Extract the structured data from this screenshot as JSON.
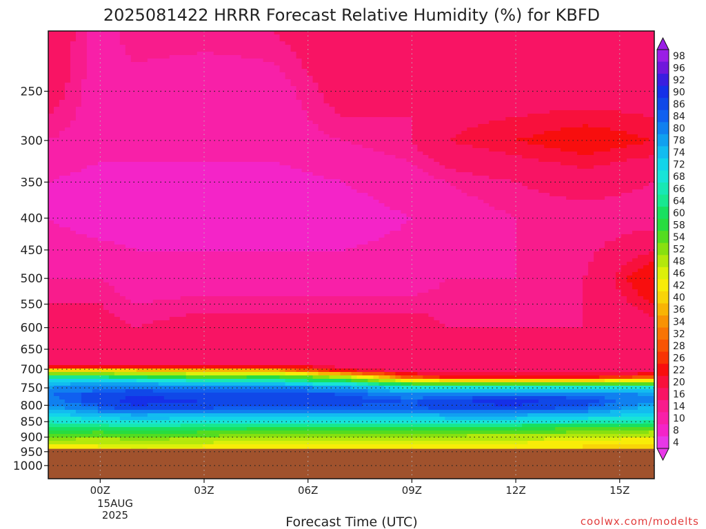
{
  "chart_data": {
    "type": "heatmap",
    "title": "2025081422 HRRR Forecast Relative Humidity (%) for KBFD",
    "xlabel": "Forecast Time (UTC)",
    "ylabel": "",
    "y_scale": "log-pressure",
    "y_reversed": true,
    "xlim": [
      -1.5,
      16.0
    ],
    "ylim": [
      1050,
      200
    ],
    "grid": true,
    "x_ticks": [
      {
        "value": 0,
        "label": "00Z"
      },
      {
        "value": 3,
        "label": "03Z"
      },
      {
        "value": 6,
        "label": "06Z"
      },
      {
        "value": 9,
        "label": "09Z"
      },
      {
        "value": 12,
        "label": "12Z"
      },
      {
        "value": 15,
        "label": "15Z"
      }
    ],
    "x_date_label": [
      "15AUG",
      "2025"
    ],
    "y_ticks": [
      250,
      300,
      350,
      400,
      450,
      500,
      550,
      600,
      650,
      700,
      750,
      800,
      850,
      900,
      950,
      1000
    ],
    "surface_pressure": 940,
    "x": [
      -1.5,
      0,
      1,
      3,
      5,
      7,
      9,
      10,
      12,
      14,
      16
    ],
    "y": [
      200,
      250,
      300,
      350,
      400,
      500,
      600,
      650,
      690,
      705,
      720,
      735,
      750,
      770,
      790,
      810,
      830,
      850,
      870,
      890,
      910,
      930,
      945
    ],
    "z": [
      [
        20,
        12,
        16,
        16,
        16,
        20,
        16,
        18,
        18,
        18,
        18
      ],
      [
        18,
        12,
        12,
        10,
        12,
        18,
        16,
        18,
        18,
        18,
        18
      ],
      [
        14,
        12,
        12,
        12,
        12,
        14,
        16,
        20,
        22,
        24,
        22
      ],
      [
        10,
        8,
        8,
        8,
        8,
        10,
        12,
        14,
        16,
        18,
        16
      ],
      [
        10,
        8,
        8,
        8,
        8,
        8,
        10,
        12,
        14,
        14,
        14
      ],
      [
        14,
        14,
        12,
        12,
        12,
        12,
        12,
        14,
        14,
        16,
        26
      ],
      [
        18,
        18,
        16,
        18,
        18,
        18,
        18,
        16,
        16,
        16,
        18
      ],
      [
        18,
        18,
        18,
        18,
        18,
        18,
        16,
        16,
        16,
        16,
        16
      ],
      [
        20,
        20,
        20,
        20,
        20,
        18,
        16,
        16,
        16,
        16,
        16
      ],
      [
        44,
        44,
        44,
        40,
        40,
        24,
        18,
        18,
        18,
        18,
        18
      ],
      [
        64,
        64,
        60,
        56,
        58,
        50,
        28,
        24,
        24,
        24,
        28
      ],
      [
        76,
        78,
        78,
        72,
        72,
        66,
        52,
        50,
        50,
        50,
        52
      ],
      [
        80,
        82,
        84,
        82,
        82,
        80,
        72,
        70,
        70,
        70,
        72
      ],
      [
        84,
        88,
        90,
        88,
        90,
        86,
        82,
        82,
        84,
        84,
        80
      ],
      [
        82,
        88,
        92,
        90,
        88,
        88,
        86,
        90,
        92,
        88,
        80
      ],
      [
        78,
        84,
        88,
        86,
        84,
        84,
        84,
        88,
        88,
        84,
        76
      ],
      [
        72,
        76,
        78,
        76,
        76,
        76,
        76,
        78,
        78,
        76,
        72
      ],
      [
        68,
        70,
        72,
        70,
        70,
        70,
        70,
        70,
        70,
        68,
        66
      ],
      [
        62,
        62,
        64,
        62,
        60,
        60,
        60,
        60,
        60,
        58,
        56
      ],
      [
        58,
        56,
        58,
        56,
        54,
        54,
        54,
        54,
        52,
        52,
        50
      ],
      [
        52,
        50,
        52,
        50,
        48,
        48,
        48,
        48,
        48,
        46,
        44
      ],
      [
        46,
        46,
        48,
        46,
        44,
        44,
        44,
        44,
        44,
        42,
        42
      ],
      [
        44,
        44,
        46,
        44,
        42,
        42,
        42,
        42,
        42,
        42,
        40
      ]
    ],
    "colorbar": {
      "levels": [
        98,
        96,
        92,
        90,
        86,
        84,
        80,
        78,
        74,
        72,
        68,
        66,
        64,
        60,
        58,
        54,
        52,
        48,
        46,
        42,
        40,
        36,
        34,
        32,
        28,
        26,
        22,
        20,
        16,
        14,
        10,
        8,
        4
      ],
      "colors": [
        "#9a1fe6",
        "#7018dc",
        "#3a1ee0",
        "#1530e8",
        "#1048e8",
        "#1060f0",
        "#1080f0",
        "#10a0f0",
        "#12bcf0",
        "#12d4ea",
        "#18e4d8",
        "#18e8b4",
        "#18e890",
        "#18e060",
        "#28dc40",
        "#54dc20",
        "#88e010",
        "#b4e80c",
        "#dcf00a",
        "#f8ec08",
        "#f8d408",
        "#f8b404",
        "#f89204",
        "#f87404",
        "#f85404",
        "#f83404",
        "#f80e0e",
        "#f8103c",
        "#f81464",
        "#f81c8c",
        "#f820a8",
        "#f424c8",
        "#e838e8"
      ],
      "top_arrow_color": "#9a1fe6",
      "bottom_arrow_color": "#e838e8"
    },
    "surface_color": "#a0522d",
    "credit": "coolwx.com/modelts",
    "credit_color": "#e23b3b"
  }
}
